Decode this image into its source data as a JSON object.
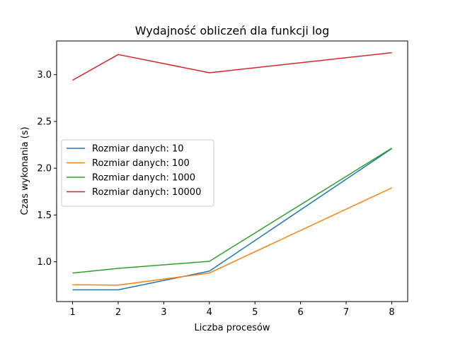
{
  "chart_data": {
    "type": "line",
    "title": "Wydajność obliczeń dla funkcji log",
    "xlabel": "Liczba procesów",
    "ylabel": "Czas wykonania (s)",
    "x": [
      1,
      2,
      4,
      8
    ],
    "xticks": [
      1,
      2,
      3,
      4,
      5,
      6,
      7,
      8
    ],
    "xtick_labels": [
      "1",
      "2",
      "3",
      "4",
      "5",
      "6",
      "7",
      "8"
    ],
    "yticks": [
      1.0,
      1.5,
      2.0,
      2.5,
      3.0
    ],
    "ytick_labels": [
      "1.0",
      "1.5",
      "2.0",
      "2.5",
      "3.0"
    ],
    "xlim": [
      0.65,
      8.35
    ],
    "ylim": [
      0.575,
      3.36
    ],
    "grid": false,
    "legend_position": "center-left",
    "series": [
      {
        "name": "Rozmiar danych: 10",
        "color": "#1f77b4",
        "values": [
          0.7,
          0.7,
          0.9,
          2.21
        ]
      },
      {
        "name": "Rozmiar danych: 100",
        "color": "#ff7f0e",
        "values": [
          0.755,
          0.75,
          0.88,
          1.79
        ]
      },
      {
        "name": "Rozmiar danych: 1000",
        "color": "#2ca02c",
        "values": [
          0.88,
          0.93,
          1.005,
          2.215
        ]
      },
      {
        "name": "Rozmiar danych: 10000",
        "color": "#d62728",
        "values": [
          2.94,
          3.215,
          3.02,
          3.235
        ]
      }
    ]
  }
}
